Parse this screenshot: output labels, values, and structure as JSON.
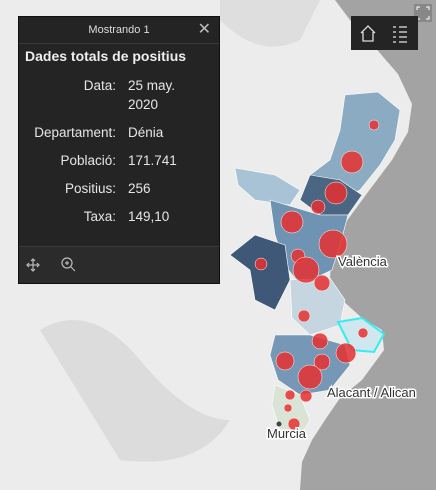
{
  "popup": {
    "header": "Mostrando 1",
    "title": "Dades totals de positius",
    "fields": [
      {
        "label": "Data:",
        "value": "25 may. 2020"
      },
      {
        "label": "Departament:",
        "value": "Dénia"
      },
      {
        "label": "Població:",
        "value": "171.741"
      },
      {
        "label": "Positius:",
        "value": "256"
      },
      {
        "label": "Taxa:",
        "value": "149,10"
      }
    ]
  },
  "map": {
    "labels": [
      "València",
      "Alacant / Alican",
      "Murcia"
    ]
  }
}
